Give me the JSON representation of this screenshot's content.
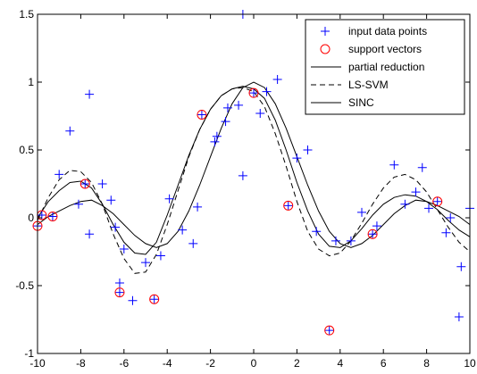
{
  "chart_data": {
    "type": "line",
    "title": "",
    "xlabel": "",
    "ylabel": "",
    "xlim": [
      -10,
      10
    ],
    "ylim": [
      -1,
      1.5
    ],
    "grid": false,
    "legend_position": "top-right",
    "x_ticks": [
      -10,
      -8,
      -6,
      -4,
      -2,
      0,
      2,
      4,
      6,
      8,
      10
    ],
    "x_tick_labels": [
      "-10",
      "-8",
      "-6",
      "-4",
      "-2",
      "0",
      "2",
      "4",
      "6",
      "8",
      "10"
    ],
    "y_ticks": [
      -1,
      -0.5,
      0,
      0.5,
      1,
      1.5
    ],
    "y_tick_labels": [
      "-1",
      "-0.5",
      "0",
      "0.5",
      "1",
      "1.5"
    ],
    "legend": [
      {
        "label": "input data points",
        "style": "plus",
        "color": "#0000ff"
      },
      {
        "label": "support vectors",
        "style": "circle",
        "color": "#ff0000"
      },
      {
        "label": "partial reduction",
        "style": "solid",
        "color": "#000000"
      },
      {
        "label": "LS-SVM",
        "style": "dashed",
        "color": "#000000"
      },
      {
        "label": "SINC",
        "style": "solid",
        "color": "#000000"
      }
    ],
    "data_points": [
      {
        "x": -10,
        "y": -0.06
      },
      {
        "x": -9.8,
        "y": 0.02
      },
      {
        "x": -9.3,
        "y": 0.01
      },
      {
        "x": -9.0,
        "y": 0.32
      },
      {
        "x": -8.5,
        "y": 0.64
      },
      {
        "x": -8.1,
        "y": 0.1
      },
      {
        "x": -7.8,
        "y": 0.25
      },
      {
        "x": -7.6,
        "y": 0.91
      },
      {
        "x": -7.6,
        "y": -0.12
      },
      {
        "x": -7.0,
        "y": 0.25
      },
      {
        "x": -6.6,
        "y": 0.13
      },
      {
        "x": -6.4,
        "y": -0.07
      },
      {
        "x": -6.2,
        "y": -0.48
      },
      {
        "x": -6.0,
        "y": -0.23
      },
      {
        "x": -6.2,
        "y": -0.55
      },
      {
        "x": -5.6,
        "y": -0.61
      },
      {
        "x": -5.0,
        "y": -0.33
      },
      {
        "x": -4.6,
        "y": -0.6
      },
      {
        "x": -4.3,
        "y": -0.28
      },
      {
        "x": -3.9,
        "y": 0.14
      },
      {
        "x": -3.3,
        "y": -0.09
      },
      {
        "x": -2.8,
        "y": -0.19
      },
      {
        "x": -2.6,
        "y": 0.08
      },
      {
        "x": -2.4,
        "y": 0.76
      },
      {
        "x": -1.8,
        "y": 0.56
      },
      {
        "x": -1.7,
        "y": 0.6
      },
      {
        "x": -1.3,
        "y": 0.71
      },
      {
        "x": -1.2,
        "y": 0.81
      },
      {
        "x": -0.7,
        "y": 0.83
      },
      {
        "x": -0.5,
        "y": 1.5
      },
      {
        "x": -0.5,
        "y": 0.31
      },
      {
        "x": 0.0,
        "y": 0.92
      },
      {
        "x": 0.3,
        "y": 0.77
      },
      {
        "x": 0.6,
        "y": 0.93
      },
      {
        "x": 1.1,
        "y": 1.02
      },
      {
        "x": 1.6,
        "y": 0.09
      },
      {
        "x": 2.0,
        "y": 0.44
      },
      {
        "x": 2.5,
        "y": 0.5
      },
      {
        "x": 2.9,
        "y": -0.1
      },
      {
        "x": 3.5,
        "y": -0.83
      },
      {
        "x": 3.8,
        "y": -0.17
      },
      {
        "x": 4.5,
        "y": -0.17
      },
      {
        "x": 5.0,
        "y": 0.04
      },
      {
        "x": 5.5,
        "y": -0.12
      },
      {
        "x": 5.7,
        "y": -0.06
      },
      {
        "x": 6.5,
        "y": 0.39
      },
      {
        "x": 7.0,
        "y": 0.1
      },
      {
        "x": 7.5,
        "y": 0.19
      },
      {
        "x": 7.8,
        "y": 0.37
      },
      {
        "x": 8.1,
        "y": 0.07
      },
      {
        "x": 8.5,
        "y": 0.12
      },
      {
        "x": 8.9,
        "y": -0.11
      },
      {
        "x": 9.1,
        "y": 0.0
      },
      {
        "x": 9.5,
        "y": -0.73
      },
      {
        "x": 9.6,
        "y": -0.36
      },
      {
        "x": 10.0,
        "y": 0.07
      }
    ],
    "support_vectors": [
      {
        "x": -10,
        "y": -0.06
      },
      {
        "x": -9.8,
        "y": 0.02
      },
      {
        "x": -9.3,
        "y": 0.01
      },
      {
        "x": -7.8,
        "y": 0.25
      },
      {
        "x": -6.2,
        "y": -0.55
      },
      {
        "x": -4.6,
        "y": -0.6
      },
      {
        "x": -2.4,
        "y": 0.76
      },
      {
        "x": 0.0,
        "y": 0.92
      },
      {
        "x": 1.6,
        "y": 0.09
      },
      {
        "x": 3.5,
        "y": -0.83
      },
      {
        "x": 5.5,
        "y": -0.12
      },
      {
        "x": 8.5,
        "y": 0.12
      }
    ],
    "series": [
      {
        "name": "partial reduction",
        "style": "solid",
        "x": [
          -10,
          -9.5,
          -9,
          -8.5,
          -8,
          -7.5,
          -7,
          -6.5,
          -6,
          -5.5,
          -5,
          -4.5,
          -4,
          -3.5,
          -3,
          -2.5,
          -2,
          -1.5,
          -1,
          -0.5,
          0,
          0.5,
          1,
          1.5,
          2,
          2.5,
          3,
          3.5,
          4,
          4.5,
          5,
          5.5,
          6,
          6.5,
          7,
          7.5,
          8,
          8.5,
          9,
          9.5,
          10
        ],
        "y": [
          0.0,
          0.12,
          0.2,
          0.26,
          0.27,
          0.22,
          0.1,
          -0.05,
          -0.18,
          -0.26,
          -0.27,
          -0.18,
          0.02,
          0.24,
          0.46,
          0.65,
          0.8,
          0.9,
          0.95,
          0.97,
          0.95,
          0.88,
          0.72,
          0.5,
          0.26,
          0.05,
          -0.12,
          -0.21,
          -0.22,
          -0.17,
          -0.08,
          0.02,
          0.1,
          0.15,
          0.17,
          0.16,
          0.12,
          0.06,
          -0.02,
          -0.09,
          -0.14
        ]
      },
      {
        "name": "LS-SVM",
        "style": "dashed",
        "x": [
          -10,
          -9.5,
          -9,
          -8.5,
          -8,
          -7.5,
          -7,
          -6.5,
          -6,
          -5.5,
          -5,
          -4.5,
          -4,
          -3.5,
          -3,
          -2.5,
          -2,
          -1.5,
          -1,
          -0.5,
          0,
          0.5,
          1,
          1.5,
          2,
          2.5,
          3,
          3.5,
          4,
          4.5,
          5,
          5.5,
          6,
          6.5,
          7,
          7.5,
          8,
          8.5,
          9,
          9.5,
          10
        ],
        "y": [
          -0.02,
          0.15,
          0.28,
          0.35,
          0.34,
          0.26,
          0.1,
          -0.12,
          -0.3,
          -0.41,
          -0.4,
          -0.27,
          -0.05,
          0.2,
          0.45,
          0.65,
          0.8,
          0.9,
          0.95,
          0.96,
          0.93,
          0.82,
          0.62,
          0.38,
          0.12,
          -0.1,
          -0.23,
          -0.28,
          -0.26,
          -0.17,
          -0.04,
          0.1,
          0.22,
          0.3,
          0.32,
          0.28,
          0.19,
          0.06,
          -0.07,
          -0.18,
          -0.25
        ]
      },
      {
        "name": "SINC",
        "style": "solid",
        "x": [
          -10,
          -9.5,
          -9,
          -8.5,
          -8,
          -7.5,
          -7,
          -6.5,
          -6,
          -5.5,
          -5,
          -4.5,
          -4,
          -3.5,
          -3,
          -2.5,
          -2,
          -1.5,
          -1,
          -0.5,
          0,
          0.5,
          1,
          1.5,
          2,
          2.5,
          3,
          3.5,
          4,
          4.5,
          5,
          5.5,
          6,
          6.5,
          7,
          7.5,
          8,
          8.5,
          9,
          9.5,
          10
        ],
        "y": [
          -0.05,
          0.01,
          0.05,
          0.09,
          0.12,
          0.13,
          0.09,
          0.03,
          -0.05,
          -0.13,
          -0.19,
          -0.22,
          -0.19,
          -0.1,
          0.05,
          0.24,
          0.45,
          0.66,
          0.84,
          0.96,
          1.0,
          0.96,
          0.84,
          0.66,
          0.45,
          0.24,
          0.05,
          -0.1,
          -0.19,
          -0.22,
          -0.19,
          -0.13,
          -0.05,
          0.03,
          0.09,
          0.13,
          0.12,
          0.09,
          0.05,
          0.01,
          -0.05
        ]
      }
    ]
  }
}
